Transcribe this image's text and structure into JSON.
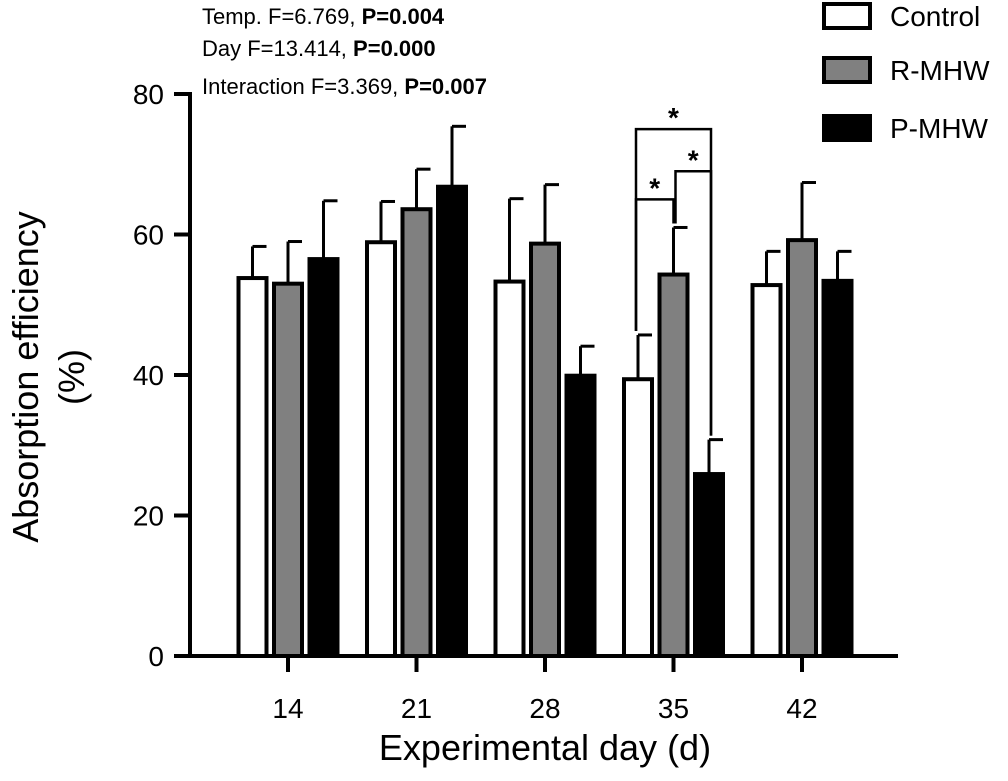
{
  "chart_data": {
    "type": "bar",
    "categories": [
      "14",
      "21",
      "28",
      "35",
      "42"
    ],
    "series": [
      {
        "name": "Control",
        "color": "#ffffff",
        "values": [
          53.8,
          58.9,
          53.3,
          39.4,
          52.8
        ],
        "errors": [
          4.5,
          5.8,
          11.8,
          6.3,
          4.8
        ]
      },
      {
        "name": "R-MHW",
        "color": "#808080",
        "values": [
          53.0,
          63.6,
          58.7,
          54.3,
          59.2
        ],
        "errors": [
          6.0,
          5.7,
          8.4,
          6.7,
          8.2
        ]
      },
      {
        "name": "P-MHW",
        "color": "#000000",
        "values": [
          56.5,
          66.8,
          39.9,
          25.9,
          53.4
        ],
        "errors": [
          8.3,
          8.6,
          4.2,
          4.9,
          4.2
        ]
      }
    ],
    "xlabel": "Experimental day (d)",
    "ylabel_line1": "Absorption efficiency",
    "ylabel_line2": "(%)",
    "ylim": [
      0,
      80
    ],
    "yticks": [
      "0",
      "20",
      "40",
      "60",
      "80"
    ],
    "legend_position": "top-right",
    "stats": [
      {
        "prefix": "Temp. F=6.769, ",
        "p": "P=0.004"
      },
      {
        "prefix": "Day F=13.414, ",
        "p": "P=0.000"
      },
      {
        "prefix": "Interaction F=3.369, ",
        "p": "P=0.007"
      }
    ],
    "significance": [
      {
        "category": "35",
        "from": "Control",
        "to": "R-MHW",
        "label": "*",
        "level": 65
      },
      {
        "category": "35",
        "from": "R-MHW",
        "to": "P-MHW",
        "label": "*",
        "level": 69
      },
      {
        "category": "35",
        "from": "Control",
        "to": "P-MHW",
        "label": "*",
        "level": 75
      }
    ]
  }
}
